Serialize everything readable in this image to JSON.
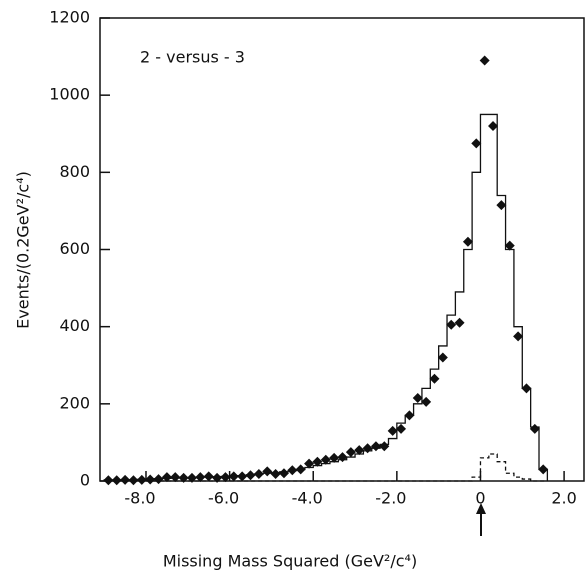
{
  "chart_data": {
    "type": "scatter",
    "annotation": "2 - versus - 3",
    "xlabel": "Missing Mass Squared (GeV²/c⁴)",
    "ylabel": "Events/(0.2GeV²/c⁴)",
    "x": [
      -8.9,
      -8.7,
      -8.5,
      -8.3,
      -8.1,
      -7.9,
      -7.7,
      -7.5,
      -7.3,
      -7.1,
      -6.9,
      -6.7,
      -6.5,
      -6.3,
      -6.1,
      -5.9,
      -5.7,
      -5.5,
      -5.3,
      -5.1,
      -4.9,
      -4.7,
      -4.5,
      -4.3,
      -4.1,
      -3.9,
      -3.7,
      -3.5,
      -3.3,
      -3.1,
      -2.9,
      -2.7,
      -2.5,
      -2.3,
      -2.1,
      -1.9,
      -1.7,
      -1.5,
      -1.3,
      -1.1,
      -0.9,
      -0.7,
      -0.5,
      -0.3,
      -0.1,
      0.1,
      0.3,
      0.5,
      0.7,
      0.9,
      1.1,
      1.3,
      1.5
    ],
    "series": [
      {
        "style": "points",
        "color": "#111111",
        "values": [
          2,
          2,
          3,
          2,
          3,
          4,
          5,
          10,
          10,
          8,
          8,
          10,
          12,
          8,
          10,
          12,
          12,
          15,
          18,
          25,
          18,
          20,
          28,
          30,
          45,
          50,
          55,
          60,
          62,
          75,
          80,
          85,
          90,
          90,
          130,
          135,
          170,
          215,
          205,
          265,
          320,
          405,
          410,
          620,
          875,
          1090,
          920,
          715,
          610,
          375,
          240,
          135,
          30
        ]
      },
      {
        "style": "step",
        "color": "#111111",
        "values": [
          3,
          3,
          3,
          3,
          4,
          5,
          6,
          7,
          8,
          9,
          9,
          10,
          10,
          11,
          12,
          13,
          14,
          16,
          18,
          20,
          22,
          24,
          27,
          30,
          35,
          40,
          45,
          50,
          55,
          62,
          70,
          78,
          85,
          95,
          110,
          150,
          170,
          200,
          240,
          290,
          350,
          430,
          490,
          600,
          800,
          950,
          950,
          740,
          600,
          400,
          240,
          140,
          30
        ]
      },
      {
        "style": "dashed-step",
        "color": "#111111",
        "values": [
          0,
          0,
          0,
          0,
          0,
          0,
          0,
          0,
          0,
          0,
          0,
          0,
          0,
          0,
          0,
          0,
          0,
          0,
          0,
          0,
          0,
          0,
          0,
          0,
          0,
          0,
          0,
          0,
          0,
          0,
          0,
          0,
          0,
          0,
          0,
          0,
          0,
          0,
          0,
          0,
          0,
          0,
          0,
          0,
          10,
          60,
          70,
          50,
          20,
          10,
          5,
          0,
          0
        ]
      }
    ],
    "xlim": [
      -9.1,
      2.5
    ],
    "xticks": [
      {
        "value": -8,
        "label": "-8.0"
      },
      {
        "value": -6,
        "label": "-6.0"
      },
      {
        "value": -4,
        "label": "-4.0"
      },
      {
        "value": -2,
        "label": "-2.0"
      },
      0,
      {
        "value": 2,
        "label": "2.0"
      }
    ],
    "ylim": [
      0,
      1200
    ],
    "yticks": [
      0,
      200,
      400,
      600,
      800,
      1000,
      1200
    ],
    "grid": false
  }
}
